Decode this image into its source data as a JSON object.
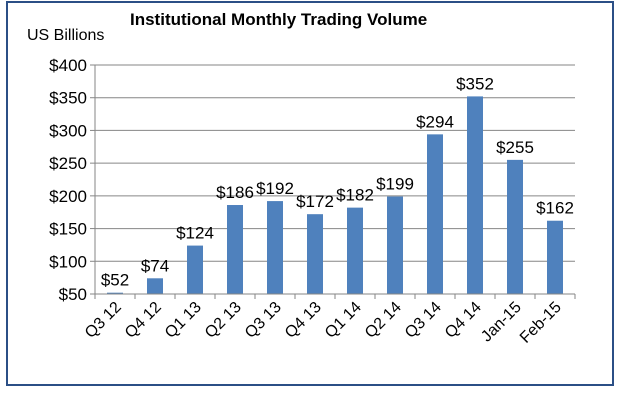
{
  "chart_data": {
    "type": "bar",
    "title": "Institutional Monthly Trading Volume",
    "ylabel": "US Billions",
    "xlabel": "",
    "categories": [
      "Q3 12",
      "Q4 12",
      "Q1 13",
      "Q2 13",
      "Q3 13",
      "Q4 13",
      "Q1 14",
      "Q2 14",
      "Q3 14",
      "Q4 14",
      "Jan-15",
      "Feb-15"
    ],
    "values": [
      52,
      74,
      124,
      186,
      192,
      172,
      182,
      199,
      294,
      352,
      255,
      162
    ],
    "data_labels": [
      "$52",
      "$74",
      "$124",
      "$186",
      "$192",
      "$172",
      "$182",
      "$199",
      "$294",
      "$352",
      "$255",
      "$162"
    ],
    "ylim": [
      50,
      400
    ],
    "yticks": [
      50,
      100,
      150,
      200,
      250,
      300,
      350,
      400
    ],
    "ytick_labels": [
      "$50",
      "$100",
      "$150",
      "$200",
      "$250",
      "$300",
      "$350",
      "$400"
    ],
    "grid": true,
    "legend": "none",
    "bar_color": "#4f81bd",
    "frame_color": "#2b4f86"
  }
}
